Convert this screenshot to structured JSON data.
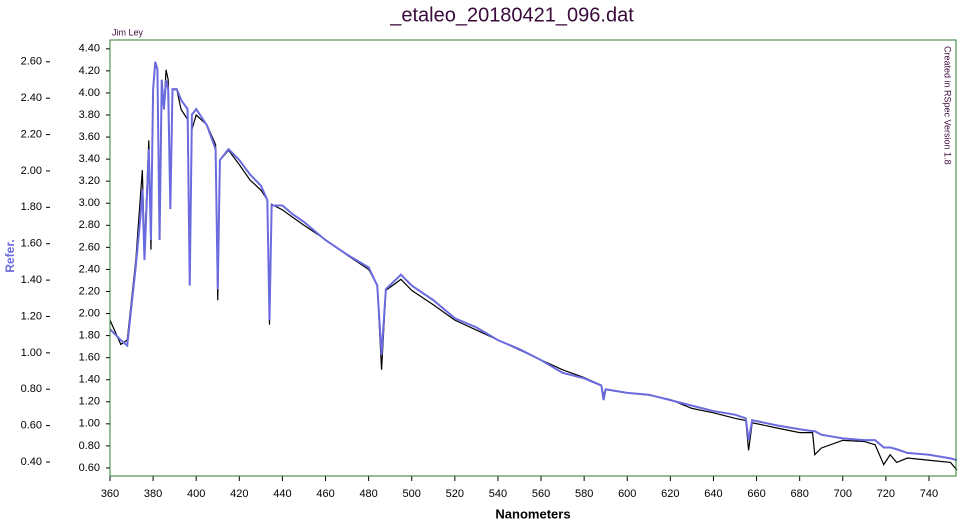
{
  "chart_data": {
    "type": "line",
    "title": "_etaleo_20180421_096.dat",
    "annotations": [
      "Jim Ley",
      "Created in RSpec Version 1.8"
    ],
    "xlabel": "Nanometers",
    "y2label": "Refer.",
    "x": [
      360,
      365,
      368,
      372,
      374,
      375,
      376,
      378,
      379,
      380,
      381,
      382,
      383,
      384,
      385,
      386,
      387,
      388,
      389,
      391,
      393,
      396,
      397,
      398,
      400,
      405,
      409,
      410,
      411,
      415,
      420,
      425,
      430,
      433,
      434,
      435,
      440,
      445,
      450,
      460,
      470,
      480,
      484,
      486,
      488,
      495,
      500,
      510,
      520,
      530,
      540,
      550,
      560,
      570,
      580,
      588,
      589,
      590,
      600,
      610,
      620,
      630,
      640,
      650,
      655,
      656.3,
      658,
      670,
      680,
      686,
      687,
      690,
      700,
      710,
      715,
      719,
      722,
      725,
      730,
      740,
      750,
      753
    ],
    "series": [
      {
        "color": "#000000",
        "values": [
          1.94,
          1.72,
          1.76,
          2.49,
          3.03,
          3.3,
          2.58,
          3.57,
          2.58,
          4.03,
          4.25,
          4.21,
          2.76,
          4.12,
          3.85,
          4.21,
          4.12,
          3.03,
          4.03,
          4.03,
          3.85,
          3.76,
          2.31,
          3.67,
          3.8,
          3.71,
          3.53,
          2.12,
          3.39,
          3.48,
          3.35,
          3.21,
          3.12,
          3.03,
          1.9,
          2.99,
          2.94,
          2.87,
          2.8,
          2.67,
          2.53,
          2.4,
          2.26,
          1.49,
          2.21,
          2.31,
          2.21,
          2.08,
          1.94,
          1.85,
          1.76,
          1.67,
          1.58,
          1.49,
          1.42,
          1.35,
          1.26,
          1.31,
          1.28,
          1.26,
          1.22,
          1.14,
          1.1,
          1.05,
          1.03,
          0.76,
          1.01,
          0.96,
          0.92,
          0.92,
          0.72,
          0.78,
          0.85,
          0.84,
          0.81,
          0.63,
          0.72,
          0.65,
          0.69,
          0.67,
          0.65,
          0.58
        ]
      },
      {
        "color": "#6b6be0",
        "axis": "y2",
        "values": [
          1.13,
          1.07,
          1.04,
          1.48,
          1.73,
          1.9,
          1.51,
          2.12,
          1.62,
          2.45,
          2.6,
          2.56,
          1.62,
          2.5,
          2.34,
          2.5,
          2.45,
          1.79,
          2.45,
          2.45,
          2.39,
          2.34,
          1.37,
          2.31,
          2.34,
          2.25,
          2.12,
          1.35,
          2.06,
          2.12,
          2.06,
          1.98,
          1.92,
          1.84,
          1.18,
          1.81,
          1.81,
          1.76,
          1.72,
          1.62,
          1.54,
          1.47,
          1.37,
          0.99,
          1.35,
          1.43,
          1.37,
          1.29,
          1.19,
          1.14,
          1.07,
          1.02,
          0.96,
          0.89,
          0.86,
          0.82,
          0.74,
          0.8,
          0.78,
          0.77,
          0.74,
          0.71,
          0.68,
          0.66,
          0.64,
          0.52,
          0.63,
          0.6,
          0.58,
          0.57,
          0.57,
          0.55,
          0.53,
          0.52,
          0.52,
          0.48,
          0.48,
          0.47,
          0.45,
          0.44,
          0.42,
          0.41
        ]
      }
    ],
    "xlim": [
      360,
      753
    ],
    "xticks": [
      360,
      380,
      400,
      420,
      440,
      460,
      480,
      500,
      520,
      540,
      560,
      580,
      600,
      620,
      640,
      660,
      680,
      700,
      720,
      740
    ],
    "ylim": [
      0.527,
      4.48
    ],
    "yticks": [
      {
        "value": 0.6,
        "label": "0.60"
      },
      {
        "value": 0.8,
        "label": "0.80"
      },
      {
        "value": 1,
        "label": "1.00"
      },
      {
        "value": 1.2,
        "label": "1.20"
      },
      {
        "value": 1.4,
        "label": "1.40"
      },
      {
        "value": 1.6,
        "label": "1.60"
      },
      {
        "value": 1.8,
        "label": "1.80"
      },
      {
        "value": 2,
        "label": "2.00"
      },
      {
        "value": 2.2,
        "label": "2.20"
      },
      {
        "value": 2.4,
        "label": "2.40"
      },
      {
        "value": 2.6,
        "label": "2.60"
      },
      {
        "value": 2.8,
        "label": "2.80"
      },
      {
        "value": 3,
        "label": "3.00"
      },
      {
        "value": 3.2,
        "label": "3.20"
      },
      {
        "value": 3.4,
        "label": "3.40"
      },
      {
        "value": 3.6,
        "label": "3.60"
      },
      {
        "value": 3.8,
        "label": "3.80"
      },
      {
        "value": 4,
        "label": "4.00"
      },
      {
        "value": 4.2,
        "label": "4.20"
      },
      {
        "value": 4.4,
        "label": "4.40"
      }
    ],
    "y2lim": [
      0.323,
      2.72
    ],
    "y2ticks": [
      {
        "value": 0.4,
        "label": "0.40"
      },
      {
        "value": 0.6,
        "label": "0.60"
      },
      {
        "value": 0.8,
        "label": "0.80"
      },
      {
        "value": 1,
        "label": "1.00"
      },
      {
        "value": 1.2,
        "label": "1.20"
      },
      {
        "value": 1.4,
        "label": "1.40"
      },
      {
        "value": 1.6,
        "label": "1.60"
      },
      {
        "value": 1.8,
        "label": "1.80"
      },
      {
        "value": 2,
        "label": "2.00"
      },
      {
        "value": 2.2,
        "label": "2.20"
      },
      {
        "value": 2.4,
        "label": "2.40"
      },
      {
        "value": 2.6,
        "label": "2.60"
      }
    ],
    "frame_color": "#2e7d32"
  }
}
